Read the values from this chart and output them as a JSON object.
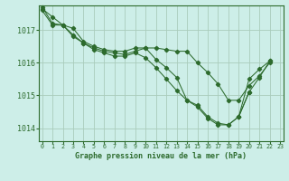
{
  "background_color": "#cdeee8",
  "line_color": "#2d6b2d",
  "grid_color": "#aaccbb",
  "title": "Graphe pression niveau de la mer (hPa)",
  "ylabel_ticks": [
    1014,
    1015,
    1016,
    1017
  ],
  "xticks": [
    0,
    1,
    2,
    3,
    4,
    5,
    6,
    7,
    8,
    9,
    10,
    11,
    12,
    13,
    14,
    15,
    16,
    17,
    18,
    19,
    20,
    21,
    22,
    23
  ],
  "ylim_min": 1013.6,
  "ylim_max": 1017.75,
  "line1": [
    1017.65,
    1017.4,
    1017.15,
    1017.05,
    1016.65,
    1016.5,
    1016.4,
    1016.35,
    1016.35,
    1016.45,
    1016.45,
    1016.45,
    1016.4,
    1016.35,
    1016.35,
    1016.0,
    1015.7,
    1015.35,
    1014.85,
    1014.85,
    1015.3,
    1015.6,
    1016.0,
    null
  ],
  "line2": [
    1017.6,
    1017.15,
    1017.15,
    1016.8,
    1016.6,
    1016.4,
    1016.3,
    1016.2,
    1016.2,
    1016.3,
    1016.15,
    1015.85,
    1015.5,
    1015.15,
    1014.85,
    1014.65,
    1014.3,
    1014.1,
    1014.1,
    1014.35,
    1015.5,
    1015.8,
    1016.05,
    null
  ],
  "line3": [
    1017.7,
    1017.2,
    1017.15,
    1016.85,
    1016.6,
    1016.45,
    1016.35,
    1016.3,
    1016.25,
    1016.35,
    1016.45,
    1016.1,
    1015.85,
    1015.55,
    1014.85,
    1014.7,
    1014.35,
    1014.15,
    1014.1,
    1014.35,
    1015.1,
    null,
    null,
    null
  ],
  "line4": [
    null,
    null,
    null,
    null,
    null,
    null,
    null,
    null,
    null,
    null,
    null,
    null,
    null,
    null,
    null,
    null,
    null,
    null,
    null,
    1014.35,
    1015.1,
    1015.55,
    1016.05,
    null
  ]
}
